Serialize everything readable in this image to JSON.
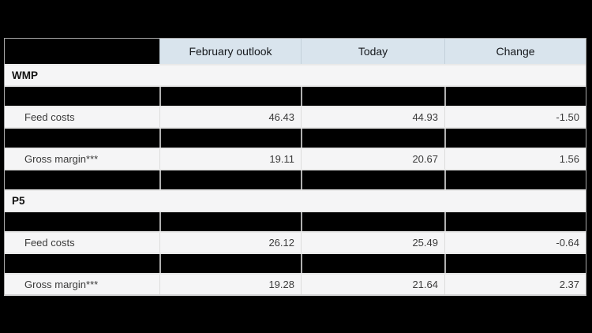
{
  "page": {
    "background": "#000000",
    "description": "Outlook comparison table with redacted title band and redacted rows"
  },
  "table": {
    "columns": [
      {
        "label": "",
        "redacted": true
      },
      {
        "label": "February outlook"
      },
      {
        "label": "Today"
      },
      {
        "label": "Change"
      }
    ],
    "rows": [
      {
        "kind": "section",
        "label": "WMP"
      },
      {
        "kind": "redacted"
      },
      {
        "kind": "data",
        "label": "Feed costs",
        "february_outlook": "46.43",
        "today": "44.93",
        "change": "-1.50"
      },
      {
        "kind": "redacted"
      },
      {
        "kind": "data",
        "label": "Gross margin***",
        "february_outlook": "19.11",
        "today": "20.67",
        "change": "1.56"
      },
      {
        "kind": "redacted"
      },
      {
        "kind": "section",
        "label": "P5"
      },
      {
        "kind": "redacted"
      },
      {
        "kind": "data",
        "label": "Feed costs",
        "february_outlook": "26.12",
        "today": "25.49",
        "change": "-0.64"
      },
      {
        "kind": "redacted"
      },
      {
        "kind": "data",
        "label": "Gross margin***",
        "february_outlook": "19.28",
        "today": "21.64",
        "change": "2.37"
      }
    ]
  },
  "colors": {
    "page_background": "#000000",
    "header_background": "#d9e4ed",
    "row_background": "#f5f5f6",
    "redaction": "#000000",
    "divider_dark_row": "#b0b0b0",
    "divider_light_row": "#dcdcdc",
    "row_separator": "#e9e9e9",
    "header_text": "#15181c",
    "body_text": "#3a3a3a"
  }
}
